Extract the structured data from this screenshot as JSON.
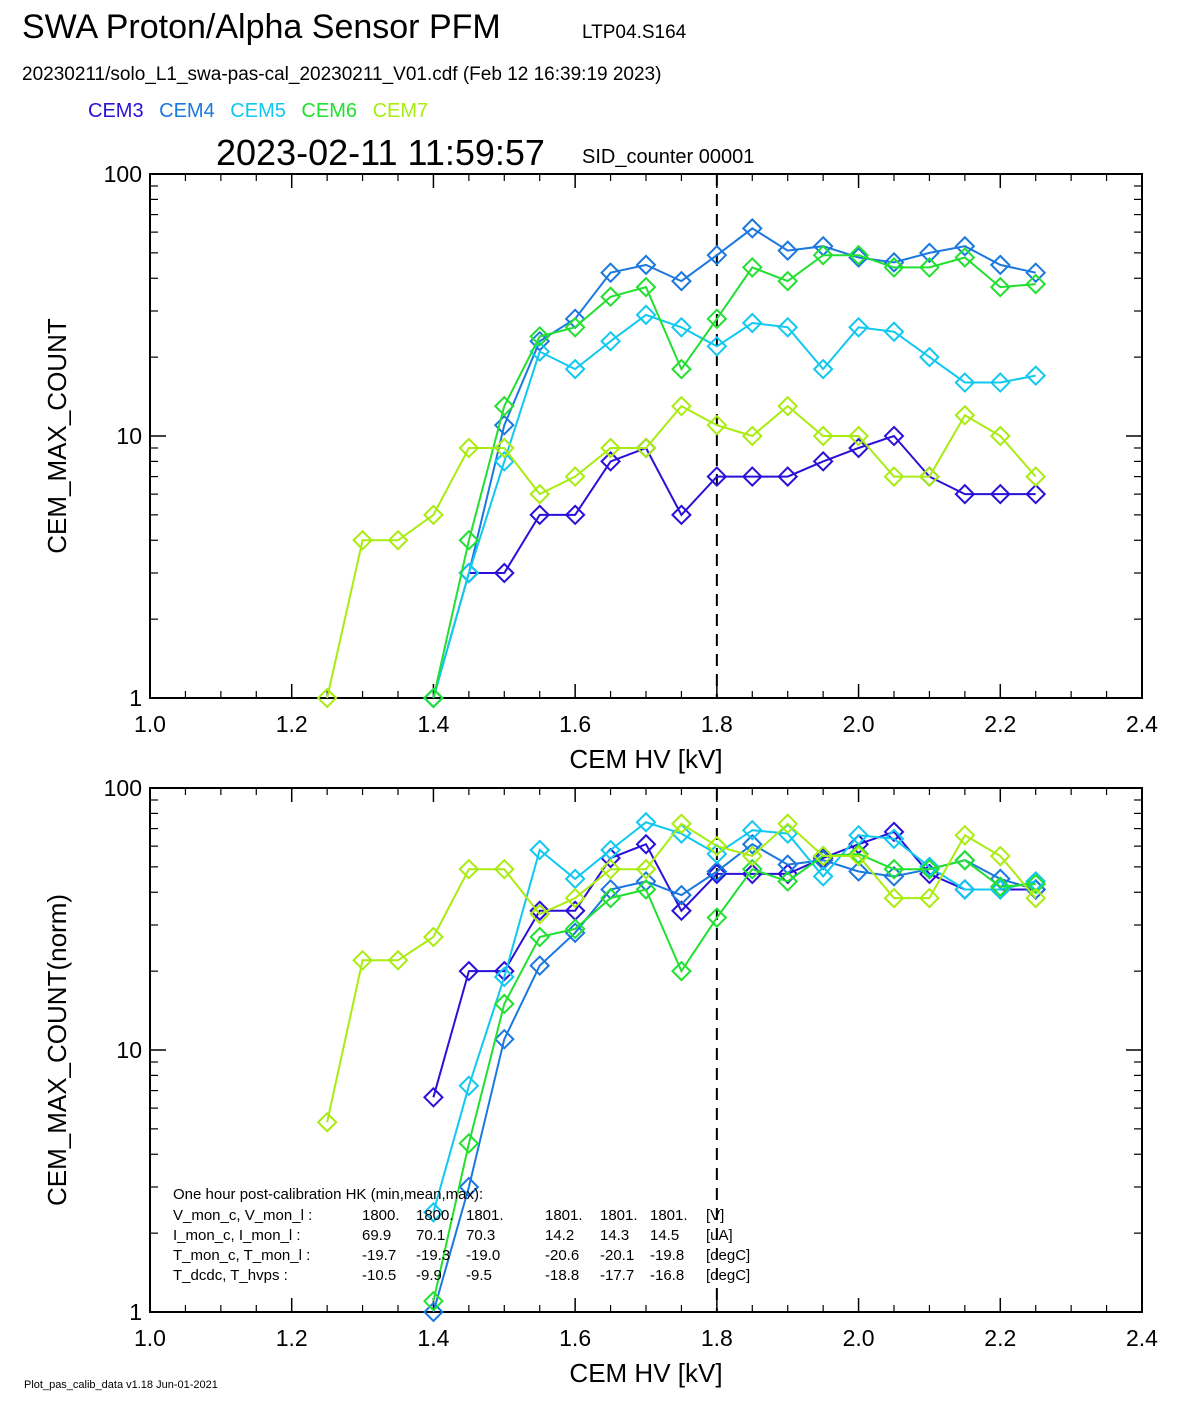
{
  "header": {
    "title": "SWA Proton/Alpha Sensor PFM",
    "title_id": "LTP04.S164",
    "file_line": "20230211/solo_L1_swa-pas-cal_20230211_V01.cdf  (Feb 12 16:39:19 2023)",
    "timestamp": "2023-02-11 11:59:57",
    "sid": "SID_counter 00001"
  },
  "legend": [
    {
      "name": "CEM3",
      "color": "#2a10d8"
    },
    {
      "name": "CEM4",
      "color": "#1a78e0"
    },
    {
      "name": "CEM5",
      "color": "#10c8f0"
    },
    {
      "name": "CEM6",
      "color": "#22e030"
    },
    {
      "name": "CEM7",
      "color": "#a8ec10"
    }
  ],
  "footer": "Plot_pas_calib_data v1.18 Jun-01-2021",
  "hk": {
    "title": "One hour post-calibration HK (min,mean,max):",
    "rows": [
      {
        "label": "V_mon_c, V_mon_l :",
        "c": [
          "1800.",
          "1800.",
          "1801."
        ],
        "l": [
          "1801.",
          "1801.",
          "1801."
        ],
        "unit": "[V]"
      },
      {
        "label": "I_mon_c,  I_mon_l :",
        "c": [
          "69.9",
          "70.1",
          "70.3"
        ],
        "l": [
          "14.2",
          "14.3",
          "14.5"
        ],
        "unit": "[uA]"
      },
      {
        "label": "T_mon_c, T_mon_l :",
        "c": [
          "-19.7",
          "-19.3",
          "-19.0"
        ],
        "l": [
          "-20.6",
          "-20.1",
          "-19.8"
        ],
        "unit": "[degC]"
      },
      {
        "label": "T_dcdc,    T_hvps :",
        "c": [
          "-10.5",
          "-9.9",
          "-9.5"
        ],
        "l": [
          "-18.8",
          "-17.7",
          "-16.8"
        ],
        "unit": "[degC]"
      }
    ]
  },
  "chart_data": [
    {
      "type": "line",
      "xlabel": "CEM HV [kV]",
      "ylabel": "CEM_MAX_COUNT",
      "xlim": [
        1.0,
        2.4
      ],
      "ylim": [
        1,
        100
      ],
      "yscale": "log",
      "xticks": [
        "1.0",
        "1.2",
        "1.4",
        "1.6",
        "1.8",
        "2.0",
        "2.2",
        "2.4"
      ],
      "yticks": [
        "1",
        "10",
        "100"
      ],
      "vline": 1.8,
      "marker": "diamond",
      "series": [
        {
          "name": "CEM3",
          "color": "#2a10d8",
          "x": [
            1.45,
            1.5,
            1.55,
            1.6,
            1.65,
            1.7,
            1.75,
            1.8,
            1.85,
            1.9,
            1.95,
            2.0,
            2.05,
            2.1,
            2.15,
            2.2,
            2.25
          ],
          "y": [
            3,
            3,
            5,
            5,
            8,
            9,
            5,
            7,
            7,
            7,
            8,
            9,
            10,
            7,
            6,
            6,
            6
          ]
        },
        {
          "name": "CEM4",
          "color": "#1a78e0",
          "x": [
            1.4,
            1.45,
            1.5,
            1.55,
            1.6,
            1.65,
            1.7,
            1.75,
            1.8,
            1.85,
            1.9,
            1.95,
            2.0,
            2.05,
            2.1,
            2.15,
            2.2,
            2.25
          ],
          "y": [
            1,
            3,
            11,
            23,
            28,
            42,
            45,
            39,
            49,
            62,
            51,
            53,
            48,
            46,
            50,
            53,
            45,
            42
          ]
        },
        {
          "name": "CEM5",
          "color": "#10c8f0",
          "x": [
            1.4,
            1.45,
            1.5,
            1.55,
            1.6,
            1.65,
            1.7,
            1.75,
            1.8,
            1.85,
            1.9,
            1.95,
            2.0,
            2.05,
            2.1,
            2.15,
            2.2,
            2.25
          ],
          "y": [
            1,
            3,
            8,
            21,
            18,
            23,
            29,
            26,
            22,
            27,
            26,
            18,
            26,
            25,
            20,
            16,
            16,
            17
          ]
        },
        {
          "name": "CEM6",
          "color": "#22e030",
          "x": [
            1.4,
            1.45,
            1.5,
            1.55,
            1.6,
            1.65,
            1.7,
            1.75,
            1.8,
            1.85,
            1.9,
            1.95,
            2.0,
            2.05,
            2.1,
            2.15,
            2.2,
            2.25
          ],
          "y": [
            1,
            4,
            13,
            24,
            26,
            34,
            37,
            18,
            28,
            44,
            39,
            49,
            49,
            44,
            44,
            48,
            37,
            38
          ]
        },
        {
          "name": "CEM7",
          "color": "#a8ec10",
          "x": [
            1.25,
            1.3,
            1.35,
            1.4,
            1.45,
            1.5,
            1.55,
            1.6,
            1.65,
            1.7,
            1.75,
            1.8,
            1.85,
            1.9,
            1.95,
            2.0,
            2.05,
            2.1,
            2.15,
            2.2,
            2.25
          ],
          "y": [
            1,
            4,
            4,
            5,
            9,
            9,
            6,
            7,
            9,
            9,
            13,
            11,
            10,
            13,
            10,
            10,
            7,
            7,
            12,
            10,
            7
          ]
        }
      ]
    },
    {
      "type": "line",
      "xlabel": "CEM HV [kV]",
      "ylabel": "CEM_MAX_COUNT(norm)",
      "xlim": [
        1.0,
        2.4
      ],
      "ylim": [
        1,
        100
      ],
      "yscale": "log",
      "xticks": [
        "1.0",
        "1.2",
        "1.4",
        "1.6",
        "1.8",
        "2.0",
        "2.2",
        "2.4"
      ],
      "yticks": [
        "1",
        "10",
        "100"
      ],
      "vline": 1.8,
      "marker": "diamond",
      "series": [
        {
          "name": "CEM3",
          "color": "#2a10d8",
          "x": [
            1.4,
            1.45,
            1.5,
            1.55,
            1.6,
            1.65,
            1.7,
            1.75,
            1.8,
            1.85,
            1.9,
            1.95,
            2.0,
            2.05,
            2.1,
            2.15,
            2.2,
            2.25
          ],
          "y": [
            6.6,
            20,
            20,
            34,
            34,
            54,
            61,
            34,
            47,
            47,
            47,
            54,
            61,
            68,
            47,
            41,
            41,
            41
          ]
        },
        {
          "name": "CEM4",
          "color": "#1a78e0",
          "x": [
            1.4,
            1.45,
            1.5,
            1.55,
            1.6,
            1.65,
            1.7,
            1.75,
            1.8,
            1.85,
            1.9,
            1.95,
            2.0,
            2.05,
            2.1,
            2.15,
            2.2,
            2.25
          ],
          "y": [
            1,
            3,
            11,
            21,
            28,
            41,
            44,
            39,
            48,
            61,
            51,
            53,
            48,
            46,
            49,
            53,
            45,
            41
          ]
        },
        {
          "name": "CEM5",
          "color": "#10c8f0",
          "x": [
            1.4,
            1.45,
            1.5,
            1.55,
            1.6,
            1.65,
            1.7,
            1.75,
            1.8,
            1.85,
            1.9,
            1.95,
            2.0,
            2.05,
            2.1,
            2.15,
            2.2,
            2.25
          ],
          "y": [
            2.4,
            7.3,
            19,
            58,
            45,
            58,
            74,
            67,
            56,
            69,
            67,
            46,
            66,
            64,
            50,
            41,
            41,
            44
          ]
        },
        {
          "name": "CEM6",
          "color": "#22e030",
          "x": [
            1.4,
            1.45,
            1.5,
            1.55,
            1.6,
            1.65,
            1.7,
            1.75,
            1.8,
            1.85,
            1.9,
            1.95,
            2.0,
            2.05,
            2.1,
            2.15,
            2.2,
            2.25
          ],
          "y": [
            1.1,
            4.4,
            15,
            27,
            29,
            38,
            41,
            20,
            32,
            49,
            44,
            55,
            56,
            49,
            49,
            53,
            42,
            43
          ]
        },
        {
          "name": "CEM7",
          "color": "#a8ec10",
          "x": [
            1.25,
            1.3,
            1.35,
            1.4,
            1.45,
            1.5,
            1.55,
            1.6,
            1.65,
            1.7,
            1.75,
            1.8,
            1.85,
            1.9,
            1.95,
            2.0,
            2.05,
            2.1,
            2.15,
            2.2,
            2.25
          ],
          "y": [
            5.3,
            22,
            22,
            27,
            49,
            49,
            33,
            38,
            49,
            49,
            73,
            60,
            55,
            73,
            55,
            55,
            38,
            38,
            66,
            55,
            38
          ]
        }
      ]
    }
  ]
}
